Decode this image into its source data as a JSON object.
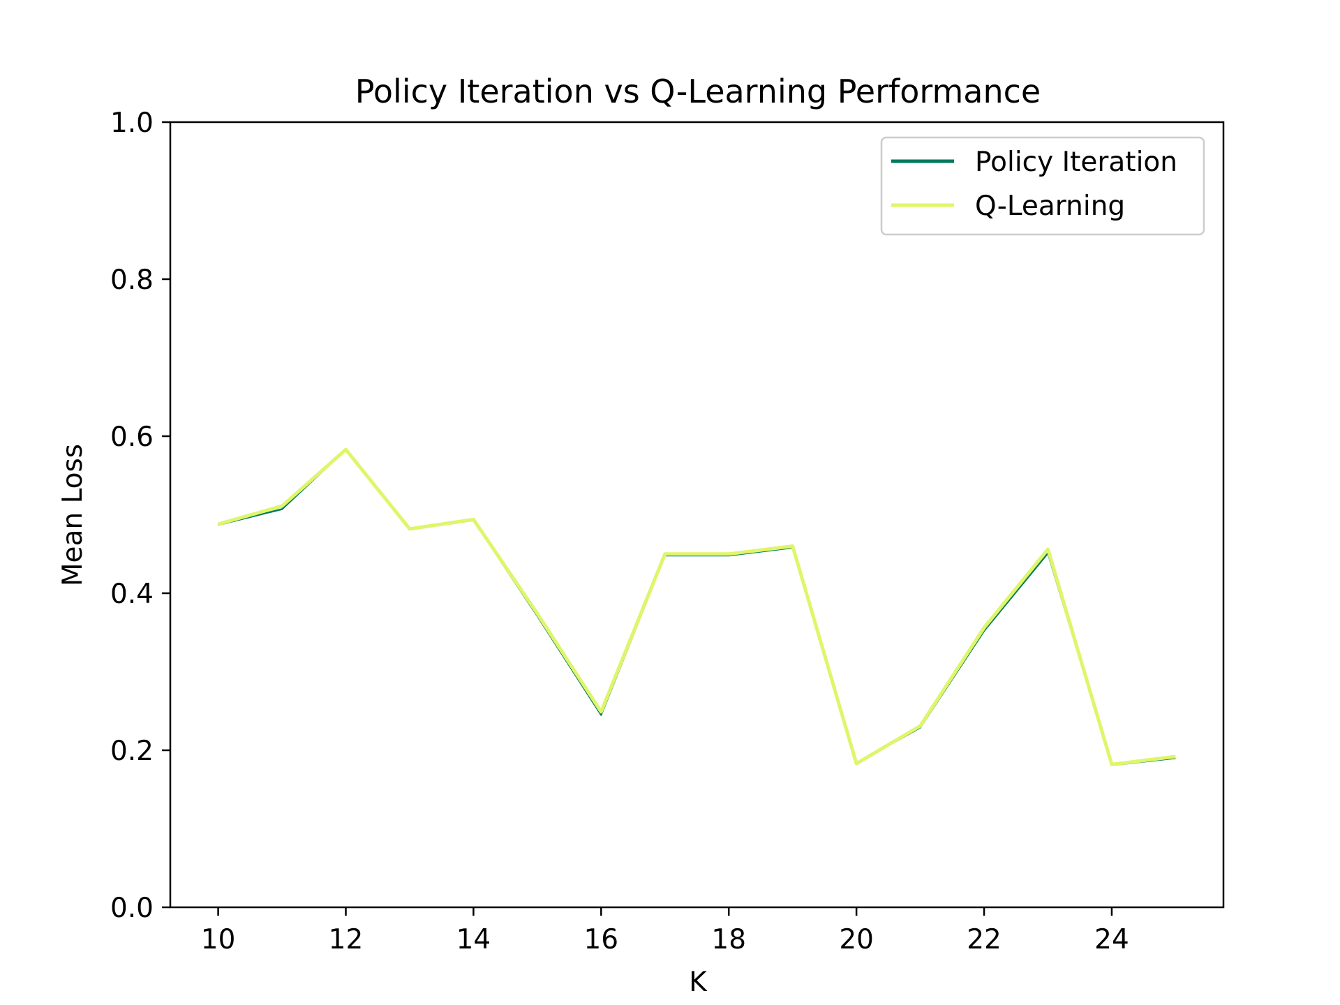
{
  "chart_data": {
    "type": "line",
    "title": "Policy Iteration vs Q-Learning Performance",
    "xlabel": "K",
    "ylabel": "Mean Loss",
    "xlim": [
      9.25,
      25.75
    ],
    "ylim": [
      0.0,
      1.0
    ],
    "x_ticks": [
      10,
      12,
      14,
      16,
      18,
      20,
      22,
      24
    ],
    "y_ticks": [
      "0.0",
      "0.2",
      "0.4",
      "0.6",
      "0.8",
      "1.0"
    ],
    "grid": false,
    "legend_position": "top-right",
    "x": [
      10,
      11,
      12,
      13,
      14,
      15,
      16,
      17,
      18,
      19,
      20,
      21,
      22,
      23,
      24,
      25
    ],
    "series": [
      {
        "name": "Policy Iteration",
        "color": "#007a5e",
        "values": [
          0.487,
          0.507,
          0.583,
          0.481,
          0.493,
          0.371,
          0.245,
          0.448,
          0.448,
          0.458,
          0.183,
          0.229,
          0.352,
          0.451,
          0.181,
          0.19
        ]
      },
      {
        "name": "Q-Learning",
        "color": "#dff56a",
        "values": [
          0.488,
          0.511,
          0.583,
          0.482,
          0.494,
          0.374,
          0.249,
          0.45,
          0.45,
          0.46,
          0.183,
          0.231,
          0.356,
          0.456,
          0.182,
          0.192
        ]
      }
    ]
  }
}
